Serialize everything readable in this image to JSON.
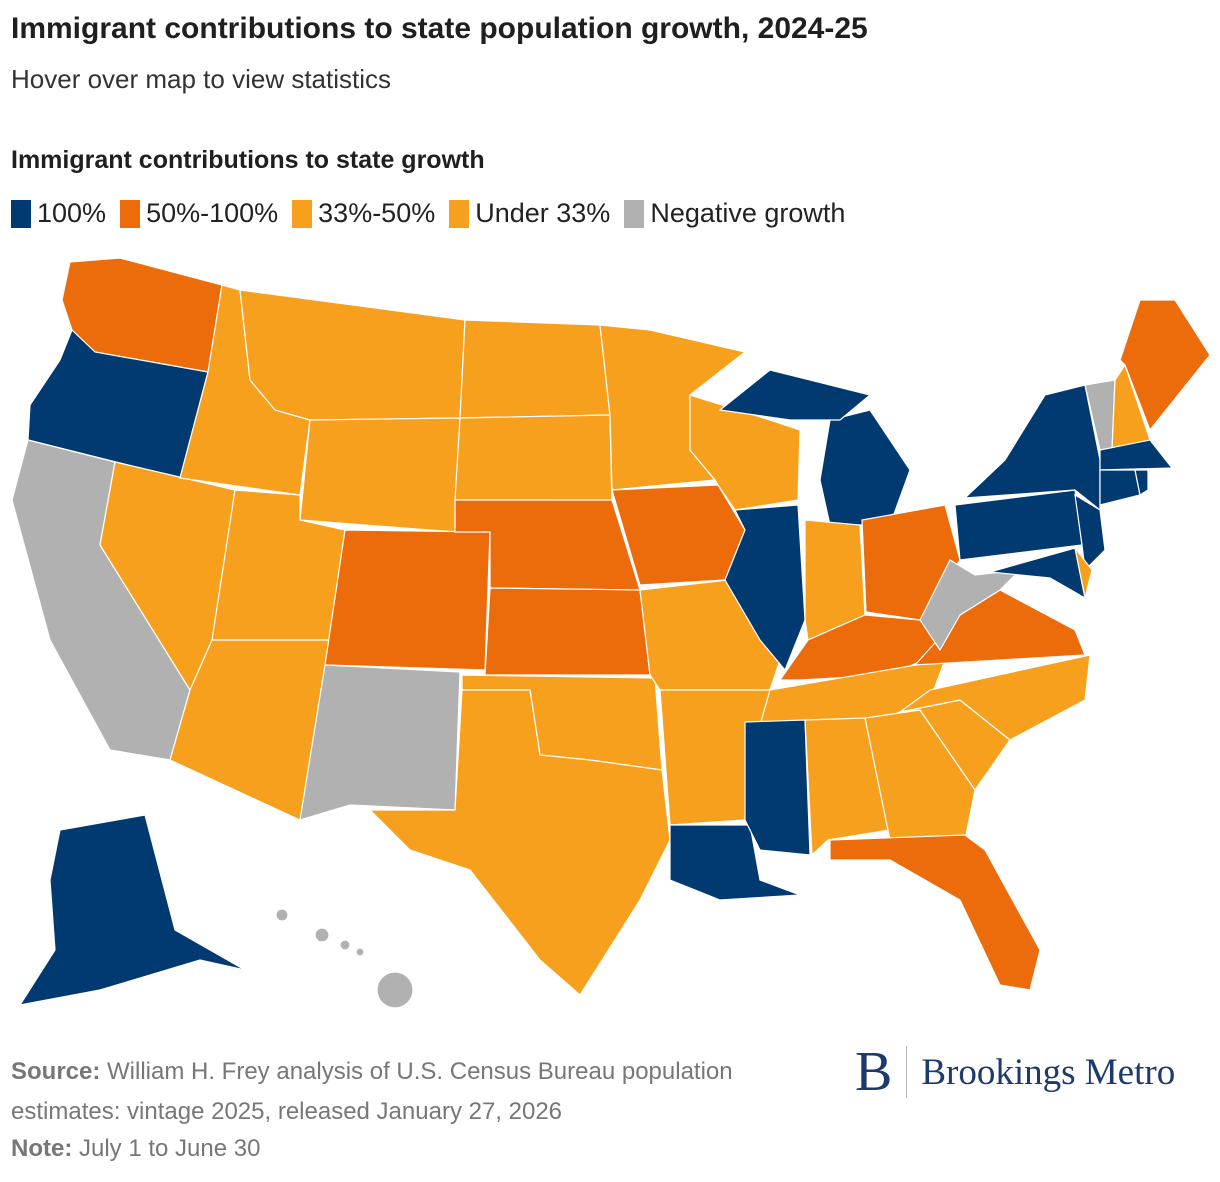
{
  "header": {
    "title": "Immigrant contributions to state population growth, 2024-25",
    "subtitle": "Hover over map to view statistics"
  },
  "legend": {
    "title": "Immigrant contributions to state growth",
    "items": [
      {
        "label": "100%",
        "color": "#003A70",
        "key": "full"
      },
      {
        "label": "50%-100%",
        "color": "#EC6B0A",
        "key": "high"
      },
      {
        "label": "33%-50%",
        "color": "#F7A01E",
        "key": "mid"
      },
      {
        "label": "Under 33%",
        "color": "#F7A01E",
        "key": "low"
      },
      {
        "label": "Negative growth",
        "color": "#B1B1B1",
        "key": "neg"
      }
    ]
  },
  "map": {
    "states": {
      "WA": "high",
      "OR": "full",
      "CA": "neg",
      "NV": "mid",
      "ID": "mid",
      "MT": "mid",
      "WY": "mid",
      "UT": "mid",
      "AZ": "mid",
      "CO": "high",
      "NM": "neg",
      "ND": "mid",
      "SD": "mid",
      "NE": "high",
      "KS": "high",
      "OK": "mid",
      "TX": "mid",
      "MN": "mid",
      "IA": "high",
      "MO": "mid",
      "AR": "mid",
      "LA": "full",
      "WI": "mid",
      "IL": "full",
      "MI": "full",
      "IN": "mid",
      "OH": "high",
      "KY": "high",
      "TN": "mid",
      "MS": "full",
      "AL": "mid",
      "GA": "mid",
      "FL": "high",
      "SC": "mid",
      "NC": "mid",
      "VA": "high",
      "WV": "neg",
      "PA": "full",
      "NY": "full",
      "NJ": "full",
      "MD": "full",
      "DE": "mid",
      "VT": "neg",
      "NH": "mid",
      "ME": "high",
      "MA": "full",
      "CT": "full",
      "RI": "full",
      "AK": "full",
      "HI": "neg"
    }
  },
  "footer": {
    "source_label": "Source:",
    "source_text": " William H. Frey analysis of U.S. Census Bureau population estimates: vintage 2025, released January 27, 2026",
    "note_label": "Note:",
    "note_text": " July 1 to June 30"
  },
  "logo": {
    "mark": "B",
    "text": "Brookings Metro"
  }
}
